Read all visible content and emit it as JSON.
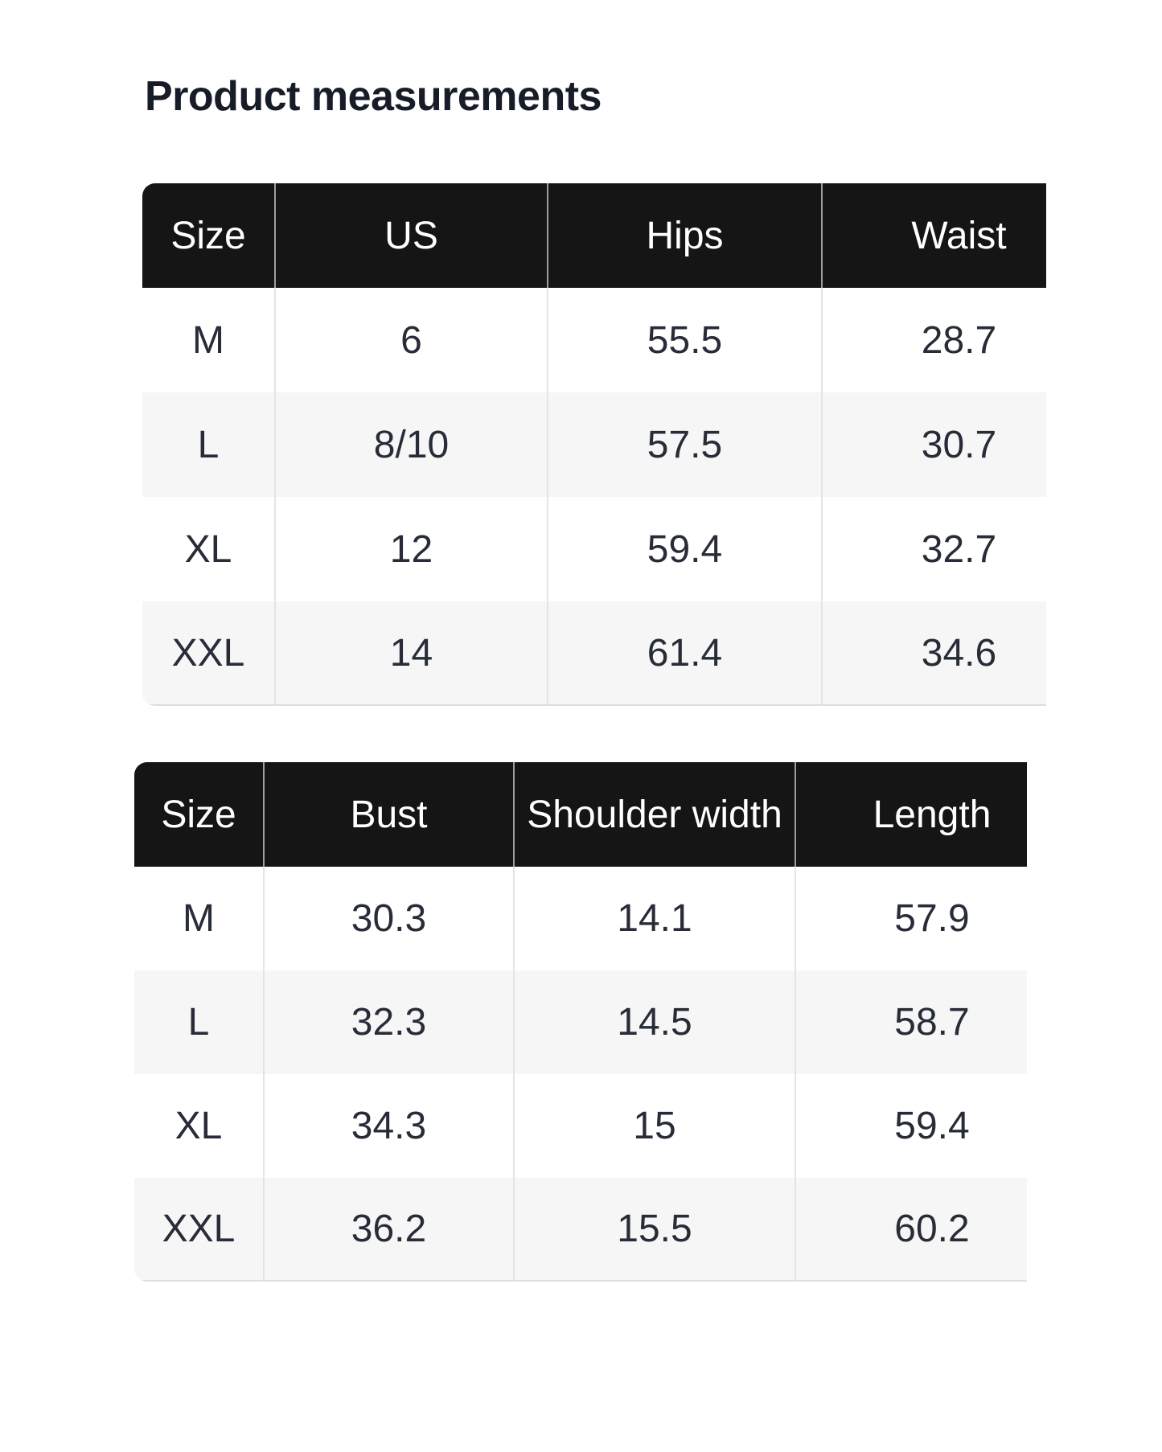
{
  "page": {
    "title": "Product measurements"
  },
  "colors": {
    "header_bg": "#151515",
    "header_text": "#ffffff",
    "cell_text": "#272c38",
    "stripe": "#f6f6f7",
    "divider_body": "#e4e4e6",
    "divider_header": "#9d9ea0",
    "border_bottom": "#dedee0",
    "title_text": "#171c29",
    "page_bg": "#ffffff"
  },
  "tables": [
    {
      "name": "size-chart-bottom",
      "columns": [
        "Size",
        "US",
        "Hips",
        "Waist"
      ],
      "rows": [
        [
          "M",
          "6",
          "55.5",
          "28.7"
        ],
        [
          "L",
          "8/10",
          "57.5",
          "30.7"
        ],
        [
          "XL",
          "12",
          "59.4",
          "32.7"
        ],
        [
          "XXL",
          "14",
          "61.4",
          "34.6"
        ]
      ]
    },
    {
      "name": "size-chart-top",
      "columns": [
        "Size",
        "Bust",
        "Shoulder width",
        "Length"
      ],
      "rows": [
        [
          "M",
          "30.3",
          "14.1",
          "57.9"
        ],
        [
          "L",
          "32.3",
          "14.5",
          "58.7"
        ],
        [
          "XL",
          "34.3",
          "15",
          "59.4"
        ],
        [
          "XXL",
          "36.2",
          "15.5",
          "60.2"
        ]
      ]
    }
  ]
}
